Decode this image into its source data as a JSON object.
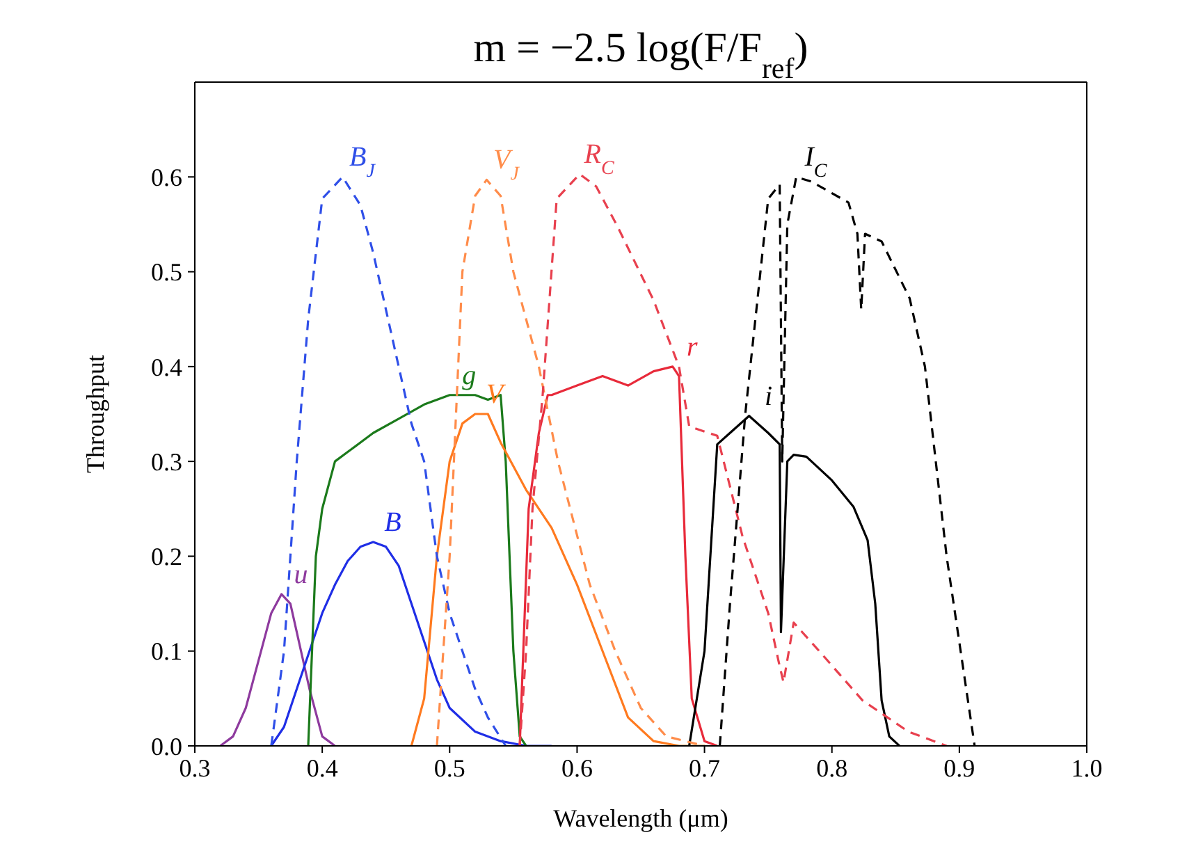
{
  "chart_data": {
    "type": "line",
    "title": "m = −2.5 log(F/F$_{ref}$)",
    "xlabel": "Wavelength (μm)",
    "ylabel": "Throughput",
    "xlim": [
      0.3,
      1.0
    ],
    "xticks": [
      0.3,
      0.4,
      0.5,
      0.6,
      0.7,
      0.8,
      0.9,
      {
        "value": 1.0,
        "label": "1.0"
      }
    ],
    "ylim": [
      0,
      0.7
    ],
    "yticks": [
      {
        "value": 0,
        "label": "0.0"
      },
      0.1,
      0.2,
      0.3,
      0.4,
      0.5,
      0.6
    ],
    "grid": false,
    "legend": false,
    "marker": "none",
    "series": [
      {
        "name": "u",
        "color": "#8e3a9e",
        "line_style": "solid",
        "x": [
          0.32,
          0.33,
          0.34,
          0.35,
          0.36,
          0.368,
          0.375,
          0.38,
          0.39,
          0.4,
          0.41
        ],
        "values": [
          0,
          0.01,
          0.04,
          0.09,
          0.14,
          0.16,
          0.15,
          0.12,
          0.06,
          0.01,
          0
        ]
      },
      {
        "name": "B",
        "color": "#1f2ee6",
        "line_style": "solid",
        "x": [
          0.36,
          0.37,
          0.38,
          0.39,
          0.4,
          0.41,
          0.42,
          0.43,
          0.44,
          0.45,
          0.46,
          0.47,
          0.48,
          0.49,
          0.5,
          0.52,
          0.54,
          0.56,
          0.58
        ],
        "values": [
          0,
          0.02,
          0.06,
          0.1,
          0.14,
          0.17,
          0.195,
          0.21,
          0.215,
          0.21,
          0.19,
          0.15,
          0.11,
          0.07,
          0.04,
          0.015,
          0.005,
          0,
          0
        ]
      },
      {
        "name": "g",
        "color": "#1b7a1b",
        "line_style": "solid",
        "x": [
          0.389,
          0.395,
          0.4,
          0.41,
          0.42,
          0.44,
          0.46,
          0.48,
          0.5,
          0.52,
          0.53,
          0.54,
          0.544,
          0.55,
          0.555,
          0.56
        ],
        "values": [
          0,
          0.2,
          0.25,
          0.3,
          0.31,
          0.33,
          0.345,
          0.36,
          0.37,
          0.37,
          0.365,
          0.37,
          0.3,
          0.1,
          0.01,
          0
        ]
      },
      {
        "name": "V",
        "color": "#ff7a1f",
        "line_style": "solid",
        "x": [
          0.47,
          0.48,
          0.49,
          0.5,
          0.51,
          0.52,
          0.53,
          0.54,
          0.56,
          0.58,
          0.6,
          0.62,
          0.64,
          0.66,
          0.68,
          0.7
        ],
        "values": [
          0,
          0.05,
          0.2,
          0.3,
          0.34,
          0.35,
          0.35,
          0.32,
          0.27,
          0.23,
          0.17,
          0.1,
          0.03,
          0.005,
          0,
          0
        ]
      },
      {
        "name": "r",
        "color": "#e82a3a",
        "line_style": "solid",
        "x": [
          0.555,
          0.562,
          0.57,
          0.577,
          0.58,
          0.6,
          0.62,
          0.64,
          0.66,
          0.675,
          0.68,
          0.685,
          0.69,
          0.7,
          0.71
        ],
        "values": [
          0,
          0.25,
          0.33,
          0.37,
          0.37,
          0.38,
          0.39,
          0.38,
          0.395,
          0.4,
          0.39,
          0.2,
          0.05,
          0.005,
          0
        ]
      },
      {
        "name": "i",
        "color": "#000000",
        "line_style": "solid",
        "x": [
          0.688,
          0.7,
          0.71,
          0.72,
          0.735,
          0.75,
          0.759,
          0.76,
          0.765,
          0.77,
          0.78,
          0.8,
          0.817,
          0.828,
          0.834,
          0.839,
          0.845,
          0.853
        ],
        "values": [
          0,
          0.1,
          0.318,
          0.33,
          0.348,
          0.33,
          0.318,
          0.12,
          0.3,
          0.307,
          0.305,
          0.28,
          0.252,
          0.217,
          0.15,
          0.048,
          0.01,
          0
        ]
      },
      {
        "name": "B$_{J}$",
        "color": "#2f4fe8",
        "line_style": "dashed",
        "x": [
          0.36,
          0.37,
          0.38,
          0.389,
          0.4,
          0.416,
          0.43,
          0.44,
          0.45,
          0.46,
          0.47,
          0.48,
          0.49,
          0.5,
          0.51,
          0.52,
          0.53,
          0.544
        ],
        "values": [
          0,
          0.1,
          0.3,
          0.45,
          0.577,
          0.6,
          0.57,
          0.52,
          0.46,
          0.4,
          0.34,
          0.3,
          0.2,
          0.14,
          0.1,
          0.06,
          0.03,
          0
        ]
      },
      {
        "name": "V$_{J}$",
        "color": "#ff8c4a",
        "line_style": "dashed",
        "x": [
          0.49,
          0.5,
          0.505,
          0.51,
          0.52,
          0.529,
          0.54,
          0.55,
          0.57,
          0.585,
          0.61,
          0.63,
          0.65,
          0.67,
          0.7
        ],
        "values": [
          0,
          0.2,
          0.35,
          0.5,
          0.58,
          0.597,
          0.58,
          0.5,
          0.4,
          0.3,
          0.17,
          0.1,
          0.04,
          0.01,
          0
        ]
      },
      {
        "name": "R$_{C}$",
        "color": "#e8404e",
        "line_style": "dashed",
        "x": [
          0.555,
          0.56,
          0.565,
          0.573,
          0.584,
          0.602,
          0.615,
          0.632,
          0.66,
          0.68,
          0.688,
          0.71,
          0.73,
          0.75,
          0.758,
          0.762,
          0.77,
          0.79,
          0.824,
          0.86,
          0.89
        ],
        "values": [
          0,
          0.1,
          0.25,
          0.37,
          0.577,
          0.603,
          0.59,
          0.547,
          0.47,
          0.4,
          0.337,
          0.327,
          0.22,
          0.14,
          0.09,
          0.067,
          0.13,
          0.1,
          0.048,
          0.015,
          0
        ]
      },
      {
        "name": "I$_{C}$",
        "color": "#000000",
        "line_style": "dashed",
        "x": [
          0.712,
          0.72,
          0.732,
          0.75,
          0.759,
          0.761,
          0.765,
          0.772,
          0.784,
          0.813,
          0.82,
          0.823,
          0.826,
          0.839,
          0.861,
          0.873,
          0.89,
          0.912
        ],
        "values": [
          0,
          0.15,
          0.35,
          0.577,
          0.592,
          0.3,
          0.55,
          0.6,
          0.595,
          0.573,
          0.54,
          0.46,
          0.54,
          0.532,
          0.472,
          0.4,
          0.2,
          0
        ]
      }
    ]
  }
}
